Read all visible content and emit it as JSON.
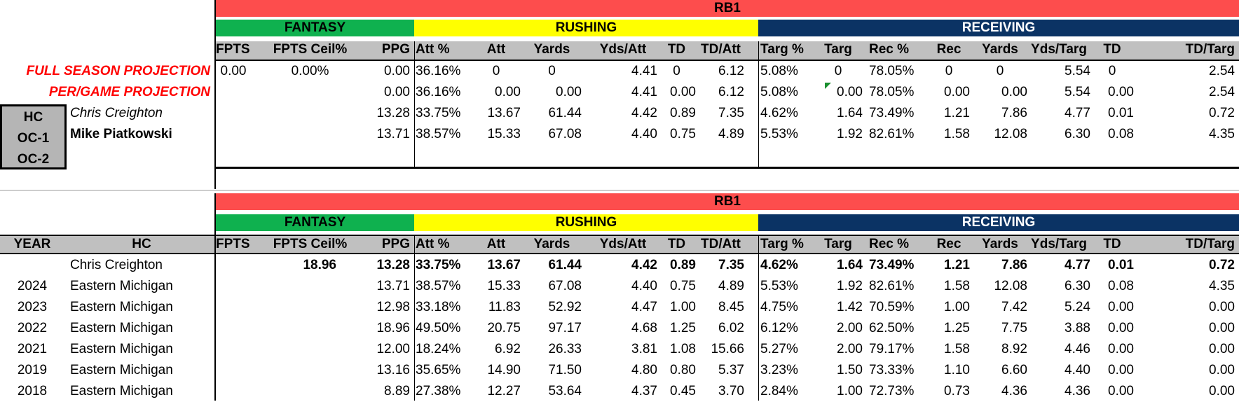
{
  "top": {
    "position_label": "RB1",
    "groups": {
      "fantasy": "FANTASY",
      "rushing": "RUSHING",
      "receiving": "RECEIVING"
    },
    "columns": [
      "FPTS",
      "FPTS Ceil%",
      "PPG",
      "Att %",
      "Att",
      "Yards",
      "Yds/Att",
      "TD",
      "TD/Att",
      "Targ %",
      "Targ",
      "Rec %",
      "Rec",
      "Yards",
      "Yds/Targ",
      "TD",
      "TD/Targ"
    ],
    "projection_labels": [
      "FULL SEASON PROJECTION",
      "PER/GAME PROJECTION"
    ],
    "roles": [
      "HC",
      "OC-1",
      "OC-2"
    ],
    "rows": [
      {
        "name": "",
        "values": [
          "0.00",
          "0.00%",
          "0.00",
          "36.16%",
          "0",
          "0",
          "4.41",
          "0",
          "6.12",
          "5.08%",
          "0",
          "78.05%",
          "0",
          "0",
          "5.54",
          "0",
          "2.54"
        ]
      },
      {
        "name": "",
        "values": [
          "",
          "",
          "0.00",
          "36.16%",
          "0.00",
          "0.00",
          "4.41",
          "0.00",
          "6.12",
          "5.08%",
          "0.00",
          "78.05%",
          "0.00",
          "0.00",
          "5.54",
          "0.00",
          "2.54"
        ]
      },
      {
        "name": "Chris Creighton",
        "values": [
          "",
          "",
          "13.28",
          "33.75%",
          "13.67",
          "61.44",
          "4.42",
          "0.89",
          "7.35",
          "4.62%",
          "1.64",
          "73.49%",
          "1.21",
          "7.86",
          "4.77",
          "0.01",
          "0.72"
        ]
      },
      {
        "name": "Mike Piatkowski",
        "values": [
          "",
          "",
          "13.71",
          "38.57%",
          "15.33",
          "67.08",
          "4.40",
          "0.75",
          "4.89",
          "5.53%",
          "1.92",
          "82.61%",
          "1.58",
          "12.08",
          "6.30",
          "0.08",
          "4.35"
        ]
      }
    ]
  },
  "bottom": {
    "position_label": "RB1",
    "groups": {
      "fantasy": "FANTASY",
      "rushing": "RUSHING",
      "receiving": "RECEIVING"
    },
    "year_header": "YEAR",
    "hc_header": "HC",
    "columns": [
      "FPTS",
      "FPTS Ceil%",
      "PPG",
      "Att %",
      "Att",
      "Yards",
      "Yds/Att",
      "TD",
      "TD/Att",
      "Targ %",
      "Targ",
      "Rec %",
      "Rec",
      "Yards",
      "Yds/Targ",
      "TD",
      "TD/Targ"
    ],
    "rows": [
      {
        "year": "",
        "hc": "Chris Creighton",
        "values": [
          "",
          "18.96",
          "13.28",
          "33.75%",
          "13.67",
          "61.44",
          "4.42",
          "0.89",
          "7.35",
          "4.62%",
          "1.64",
          "73.49%",
          "1.21",
          "7.86",
          "4.77",
          "0.01",
          "0.72"
        ]
      },
      {
        "year": "2024",
        "hc": "Eastern Michigan",
        "values": [
          "",
          "",
          "13.71",
          "38.57%",
          "15.33",
          "67.08",
          "4.40",
          "0.75",
          "4.89",
          "5.53%",
          "1.92",
          "82.61%",
          "1.58",
          "12.08",
          "6.30",
          "0.08",
          "4.35"
        ]
      },
      {
        "year": "2023",
        "hc": "Eastern Michigan",
        "values": [
          "",
          "",
          "12.98",
          "33.18%",
          "11.83",
          "52.92",
          "4.47",
          "1.00",
          "8.45",
          "4.75%",
          "1.42",
          "70.59%",
          "1.00",
          "7.42",
          "5.24",
          "0.00",
          "0.00"
        ]
      },
      {
        "year": "2022",
        "hc": "Eastern Michigan",
        "values": [
          "",
          "",
          "18.96",
          "49.50%",
          "20.75",
          "97.17",
          "4.68",
          "1.25",
          "6.02",
          "6.12%",
          "2.00",
          "62.50%",
          "1.25",
          "7.75",
          "3.88",
          "0.00",
          "0.00"
        ]
      },
      {
        "year": "2021",
        "hc": "Eastern Michigan",
        "values": [
          "",
          "",
          "12.00",
          "18.24%",
          "6.92",
          "26.33",
          "3.81",
          "1.08",
          "15.66",
          "5.27%",
          "2.00",
          "79.17%",
          "1.58",
          "8.92",
          "4.46",
          "0.00",
          "0.00"
        ]
      },
      {
        "year": "2019",
        "hc": "Eastern Michigan",
        "values": [
          "",
          "",
          "13.16",
          "35.65%",
          "14.90",
          "71.50",
          "4.80",
          "0.80",
          "5.37",
          "3.23%",
          "1.50",
          "73.33%",
          "1.10",
          "6.60",
          "4.40",
          "0.00",
          "0.00"
        ]
      },
      {
        "year": "2018",
        "hc": "Eastern Michigan",
        "values": [
          "",
          "",
          "8.89",
          "27.38%",
          "12.27",
          "53.64",
          "4.37",
          "0.45",
          "3.70",
          "2.84%",
          "1.00",
          "72.73%",
          "0.73",
          "4.36",
          "4.36",
          "0.00",
          "0.00"
        ]
      }
    ]
  },
  "colors": {
    "position_band": "#fd4d4d",
    "fantasy": "#0fb14f",
    "rushing": "#ffff00",
    "receiving": "#0b3364",
    "projection_text": "#ff0000",
    "header_row": "#c0c0c0"
  }
}
